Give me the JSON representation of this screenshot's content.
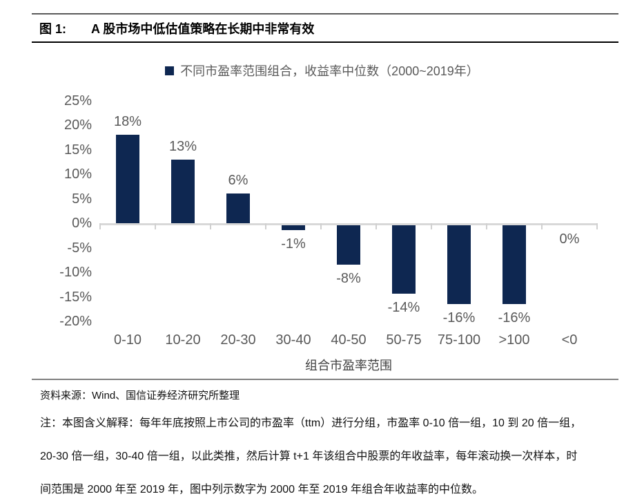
{
  "figure": {
    "label": "图 1:",
    "title": "A 股市场中低估值策略在长期中非常有效"
  },
  "legend": {
    "text": "不同市盈率范围组合，收益率中位数（2000~2019年）"
  },
  "chart_data": {
    "type": "bar",
    "title": "不同市盈率范围组合，收益率中位数（2000~2019年）",
    "categories": [
      "0-10",
      "10-20",
      "20-30",
      "30-40",
      "40-50",
      "50-75",
      "75-100",
      ">100",
      "<0"
    ],
    "values": [
      18,
      13,
      6,
      -1,
      -8,
      -14,
      -16,
      -16,
      0
    ],
    "data_labels": [
      "18%",
      "13%",
      "6%",
      "-1%",
      "-8%",
      "-14%",
      "-16%",
      "-16%",
      "0%"
    ],
    "xlabel": "组合市盈率范围",
    "ylabel": "",
    "ylim": [
      -20,
      25
    ],
    "ytick_step": 5,
    "ytick_labels": [
      "25%",
      "20%",
      "15%",
      "10%",
      "5%",
      "0%",
      "-5%",
      "-10%",
      "-15%",
      "-20%"
    ],
    "grid": false,
    "legend_position": "top-center"
  },
  "colors": {
    "bar": "#0e2751",
    "axis": "#d8d8d8",
    "tick": "#d0d0d0",
    "label": "#595959"
  },
  "source": "资料来源：Wind、国信证券经济研究所整理",
  "notes": [
    "注：本图含义解释：每年年底按照上市公司的市盈率（ttm）进行分组，市盈率 0-10 倍一组，10 到 20 倍一组，",
    "20-30 倍一组，30-40 倍一组，以此类推，然后计算 t+1 年该组合中股票的年收益率，每年滚动换一次样本，时",
    "间范围是 2000 年至 2019 年，图中列示数字为 2000 年至 2019 年组合年收益率的中位数。"
  ]
}
